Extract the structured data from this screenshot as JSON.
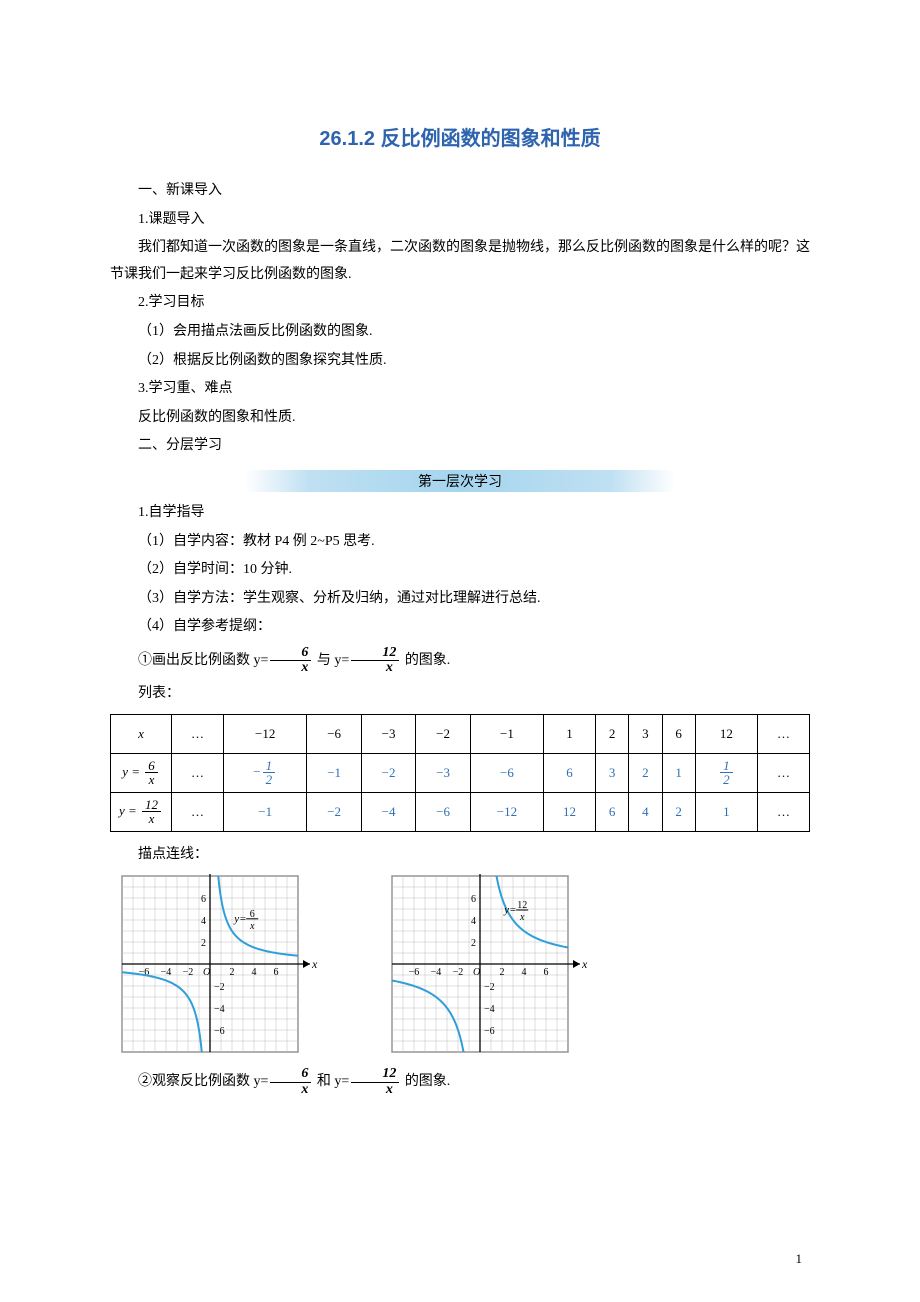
{
  "title": "26.1.2 反比例函数的图象和性质",
  "s1_h": "一、新课导入",
  "s1_1h": "1.课题导入",
  "s1_1p": "我们都知道一次函数的图象是一条直线，二次函数的图象是抛物线，那么反比例函数的图象是什么样的呢？这节课我们一起来学习反比例函数的图象.",
  "s1_2h": "2.学习目标",
  "s1_2a": "（1）会用描点法画反比例函数的图象.",
  "s1_2b": "（2）根据反比例函数的图象探究其性质.",
  "s1_3h": "3.学习重、难点",
  "s1_3p": "反比例函数的图象和性质.",
  "s2_h": "二、分层学习",
  "banner": "第一层次学习",
  "s2_1h": "1.自学指导",
  "s2_1a": "（1）自学内容：教材 P4 例 2~P5 思考.",
  "s2_1b": "（2）自学时间：10 分钟.",
  "s2_1c": "（3）自学方法：学生观察、分析及归纳，通过对比理解进行总结.",
  "s2_1d": "（4）自学参考提纲：",
  "q1_pre": "①画出反比例函数 y=",
  "q1_mid": "  与 y=",
  "q1_post": " 的图象.",
  "f6n": "6",
  "f6d": "x",
  "f12n": "12",
  "f12d": "x",
  "list_label": "列表：",
  "table": {
    "head": [
      "x",
      "…",
      "−12",
      "−6",
      "−3",
      "−2",
      "−1",
      "1",
      "2",
      "3",
      "6",
      "12",
      "…"
    ],
    "row6": {
      "label_num": "6",
      "label_den": "x",
      "cells": [
        "…",
        "HALF_NEG",
        "−1",
        "−2",
        "−3",
        "−6",
        "6",
        "3",
        "2",
        "1",
        "HALF_POS",
        "…"
      ]
    },
    "row12": {
      "label_num": "12",
      "label_den": "x",
      "cells": [
        "…",
        "−1",
        "−2",
        "−4",
        "−6",
        "−12",
        "12",
        "6",
        "4",
        "2",
        "1",
        "…"
      ]
    },
    "half_num": "1",
    "half_den": "2",
    "blue": "#2f6fb3"
  },
  "plot_label": "描点连线：",
  "chart": {
    "bg": "#ffffff",
    "grid": "#bfbfbf",
    "axis": "#000000",
    "curve": "#2f9ed9",
    "tick_color": "#000000",
    "font_size": 10,
    "xlim": [
      -8,
      8
    ],
    "ylim": [
      -8,
      8
    ],
    "xticks_neg": [
      -6,
      -4,
      -2
    ],
    "xticks_pos": [
      2,
      4,
      6
    ],
    "yticks_pos": [
      2,
      4,
      6
    ],
    "yticks_neg": [
      -2,
      -4,
      -6
    ],
    "origin": "O",
    "xlabel": "x",
    "ylabel": "y",
    "eq6_pre": "y=",
    "eq6_num": "6",
    "eq6_den": "x",
    "eq12_pre": "y=",
    "eq12_num": "12",
    "eq12_den": "x"
  },
  "q2_pre": "②观察反比例函数 y=",
  "q2_mid": " 和 y=",
  "q2_post": " 的图象.",
  "page_number": "1"
}
